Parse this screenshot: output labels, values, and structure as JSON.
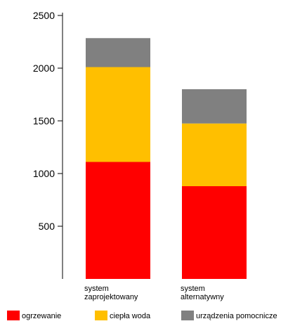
{
  "chart_data": {
    "type": "bar",
    "stacked": true,
    "categories": [
      [
        "system",
        "zaprojektowany"
      ],
      [
        "system",
        "alternatywny"
      ]
    ],
    "series": [
      {
        "name": "ogrzewanie",
        "color": "#ff0000",
        "values": [
          1110,
          880
        ]
      },
      {
        "name": "ciepła woda",
        "color": "#ffbf00",
        "values": [
          900,
          595
        ]
      },
      {
        "name": "urządzenia pomocnicze",
        "color": "#808080",
        "values": [
          275,
          325
        ]
      }
    ],
    "yticks": [
      "500",
      "1000",
      "1500",
      "2000",
      "2500"
    ],
    "ylim": [
      0,
      2500
    ],
    "grid": false,
    "legend_position": "bottom",
    "title": "",
    "xlabel": "",
    "ylabel": ""
  }
}
